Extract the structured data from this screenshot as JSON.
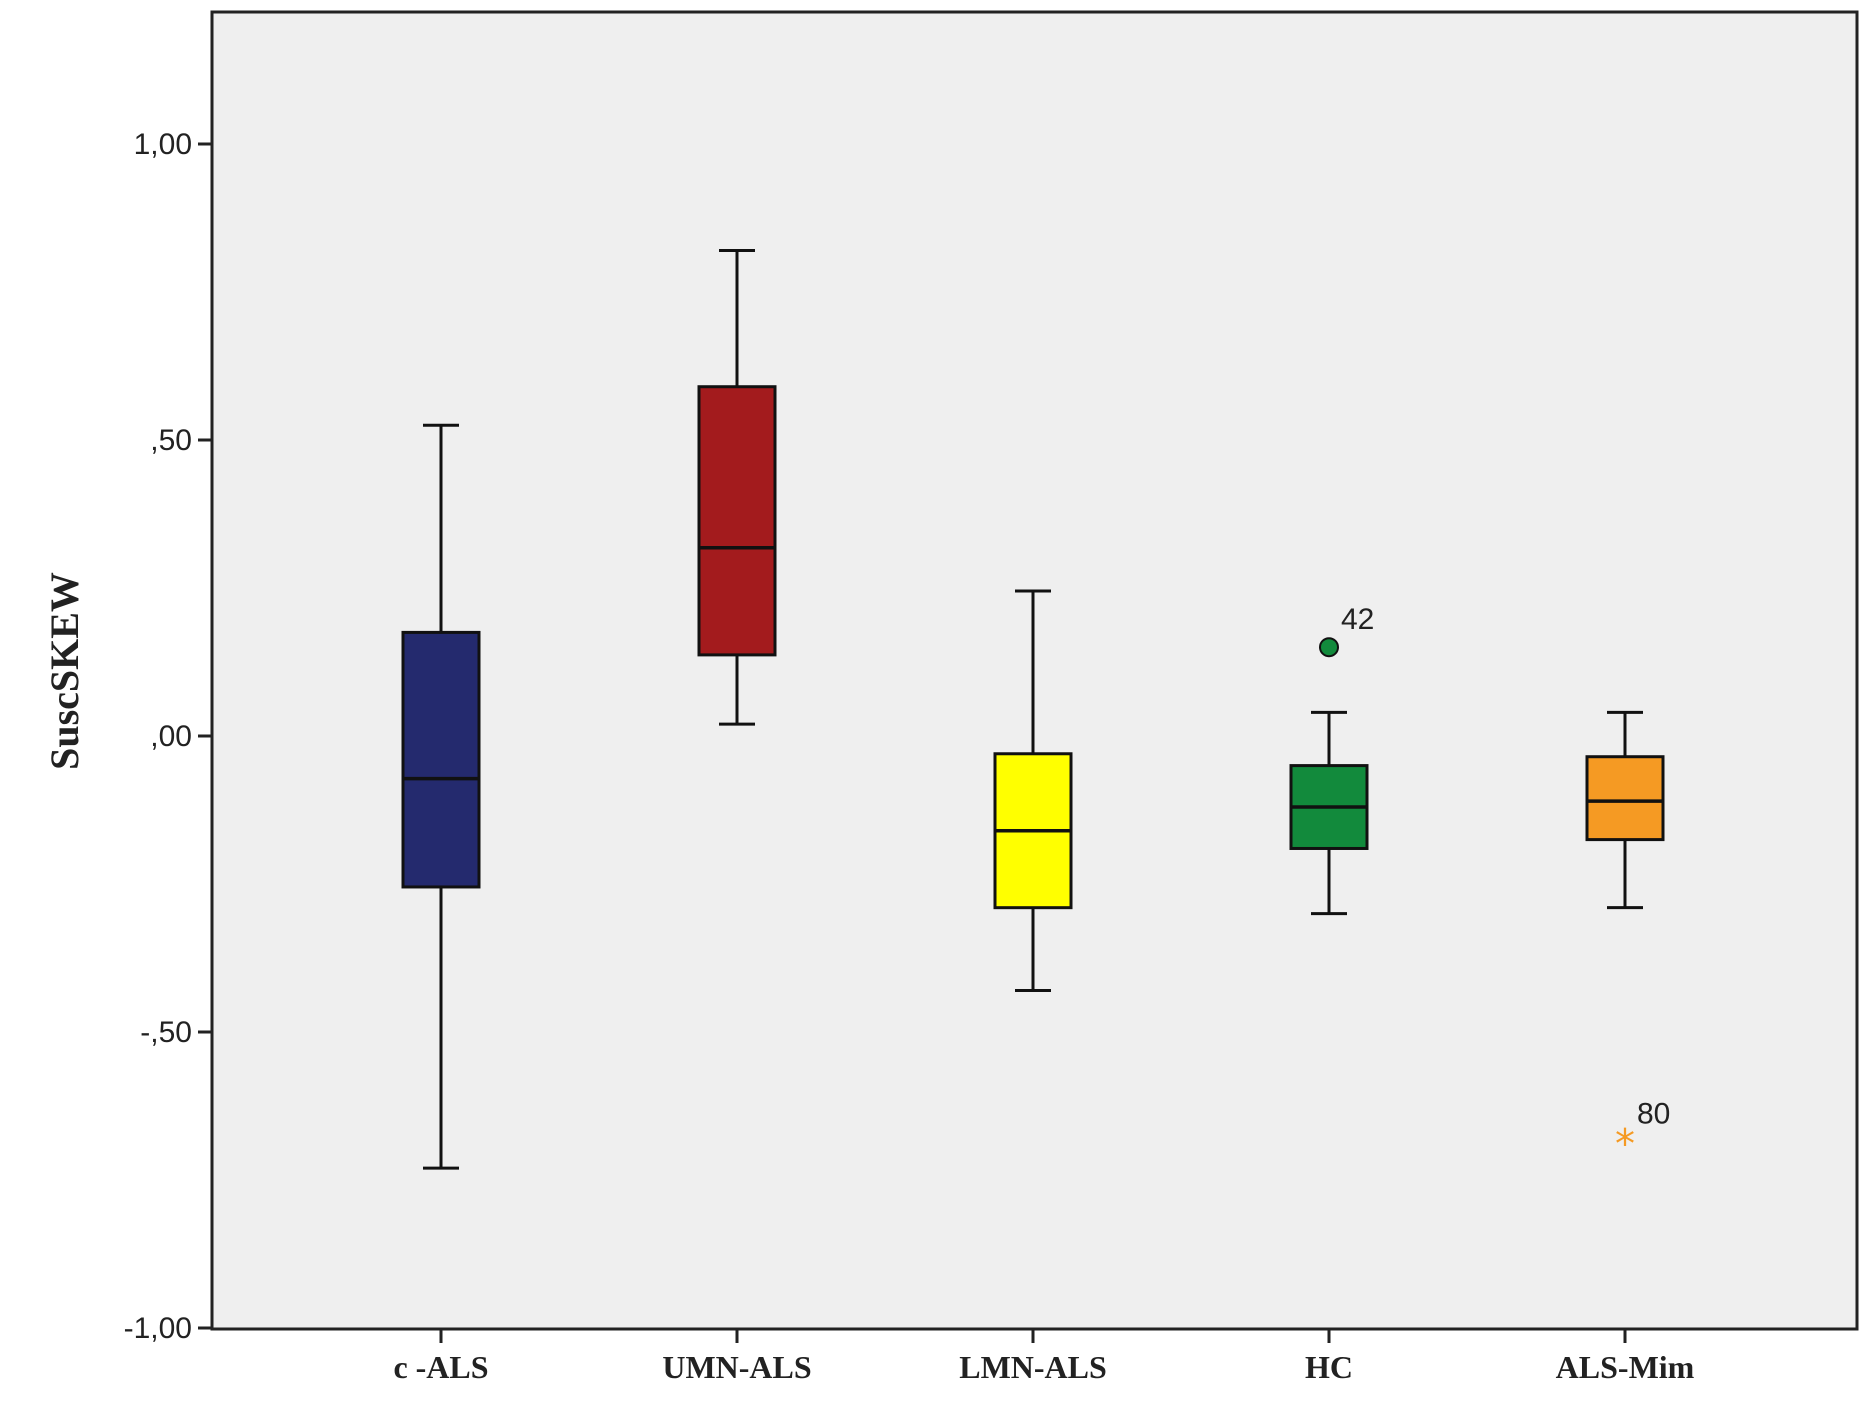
{
  "chart_data": {
    "type": "boxplot",
    "ylabel": "SuscSKEW",
    "xlabel": "",
    "ylim": [
      -1.0,
      1.2
    ],
    "y_ticks": [
      1.0,
      0.5,
      0.0,
      -0.5,
      -1.0
    ],
    "y_tick_labels": [
      "1,00",
      ",50",
      ",00",
      "-,50",
      "-1,00"
    ],
    "grid": false,
    "categories": [
      "c -ALS",
      "UMN-ALS",
      "LMN-ALS",
      "HC",
      "ALS-Mim"
    ],
    "boxes": [
      {
        "category": "c -ALS",
        "color": "#242a6e",
        "whisker_low": -0.73,
        "q1": -0.255,
        "median": -0.072,
        "q3": 0.175,
        "whisker_high": 0.525,
        "outliers": []
      },
      {
        "category": "UMN-ALS",
        "color": "#a31b1d",
        "whisker_low": 0.02,
        "q1": 0.137,
        "median": 0.318,
        "q3": 0.59,
        "whisker_high": 0.82,
        "outliers": []
      },
      {
        "category": "LMN-ALS",
        "color": "#ffff00",
        "whisker_low": -0.43,
        "q1": -0.29,
        "median": -0.16,
        "q3": -0.03,
        "whisker_high": 0.245,
        "outliers": []
      },
      {
        "category": "HC",
        "color": "#128a3c",
        "whisker_low": -0.3,
        "q1": -0.19,
        "median": -0.12,
        "q3": -0.05,
        "whisker_high": 0.04,
        "outliers": [
          {
            "value": 0.15,
            "label": "42",
            "marker": "circle"
          }
        ]
      },
      {
        "category": "ALS-Mim",
        "color": "#f59a23",
        "whisker_low": -0.29,
        "q1": -0.175,
        "median": -0.11,
        "q3": -0.035,
        "whisker_high": 0.04,
        "outliers": [
          {
            "value": -0.685,
            "label": "80",
            "marker": "star"
          }
        ]
      }
    ]
  }
}
